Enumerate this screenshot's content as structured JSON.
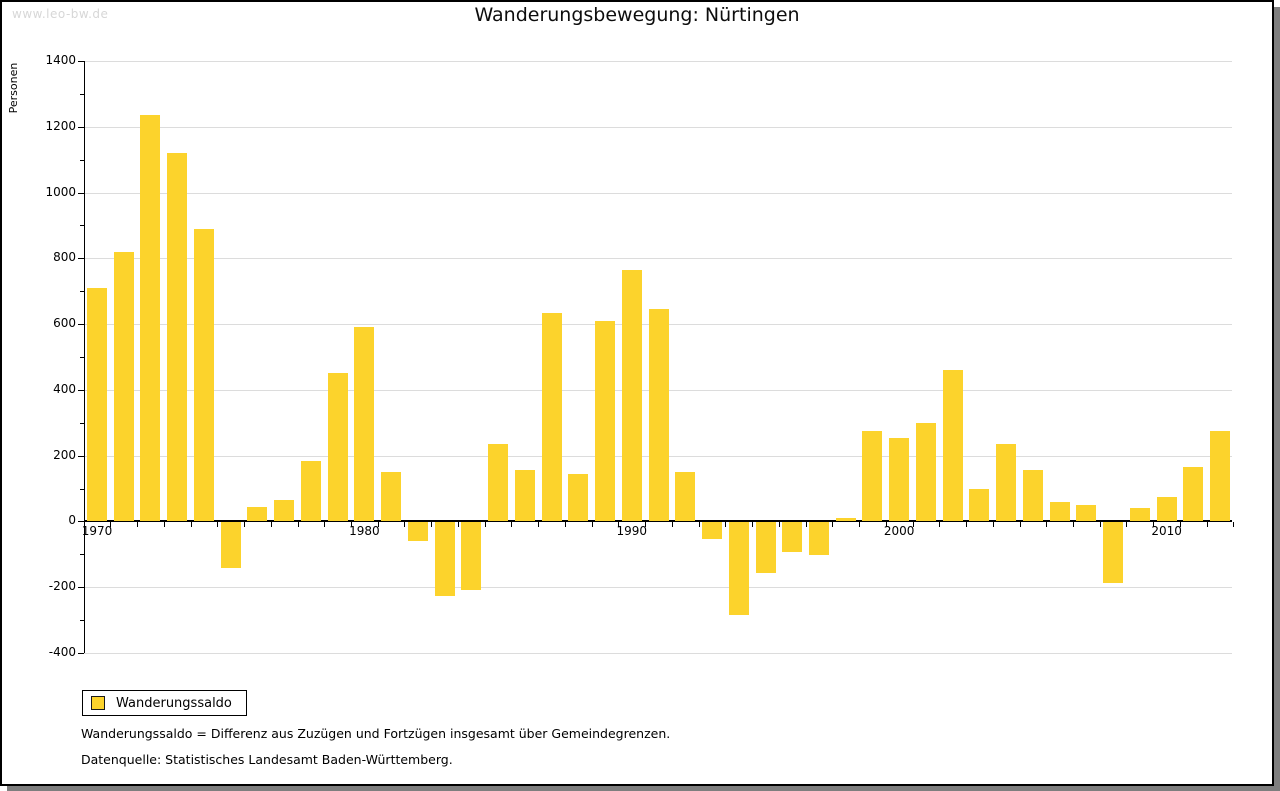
{
  "watermark": "www.leo-bw.de",
  "header": {
    "title": "Wanderungsbewegung: Nürtingen"
  },
  "legend": {
    "label": "Wanderungssaldo"
  },
  "footnotes": {
    "definition": "Wanderungssaldo = Differenz aus Zuzügen und Fortzügen insgesamt über Gemeindegrenzen.",
    "source": "Datenquelle: Statistisches Landesamt Baden-Württemberg."
  },
  "colors": {
    "bar": "#fcd32c",
    "grid": "#dcdcdc",
    "axis": "#000000",
    "watermark": "#d7d7d7",
    "shadow": "#7e7e7e"
  },
  "chart_data": {
    "type": "bar",
    "title": "Wanderungsbewegung: Nürtingen",
    "xlabel": "",
    "ylabel": "Personen",
    "series": [
      {
        "name": "Wanderungssaldo",
        "values": [
          710,
          820,
          1235,
          1120,
          890,
          -140,
          45,
          65,
          185,
          450,
          590,
          150,
          -55,
          -225,
          -205,
          235,
          155,
          635,
          145,
          610,
          765,
          645,
          150,
          -50,
          -280,
          -155,
          -90,
          -100,
          10,
          275,
          255,
          300,
          460,
          100,
          235,
          155,
          60,
          50,
          -185,
          40,
          75,
          165,
          275
        ]
      }
    ],
    "categories": [
      1970,
      1971,
      1972,
      1973,
      1974,
      1975,
      1976,
      1977,
      1978,
      1979,
      1980,
      1981,
      1982,
      1983,
      1984,
      1985,
      1986,
      1987,
      1988,
      1989,
      1990,
      1991,
      1992,
      1993,
      1994,
      1995,
      1996,
      1997,
      1998,
      1999,
      2000,
      2001,
      2002,
      2003,
      2004,
      2005,
      2006,
      2007,
      2008,
      2009,
      2010,
      2011,
      2012
    ],
    "ylim": [
      -400,
      1400
    ],
    "yticks": [
      1400,
      1200,
      1000,
      800,
      600,
      400,
      200,
      0,
      -200,
      -400
    ],
    "ytick_minor_interval": 100,
    "xtick_labels": [
      1970,
      1980,
      1990,
      2000,
      2010
    ],
    "grid": true,
    "legend_position": "bottom-left"
  }
}
